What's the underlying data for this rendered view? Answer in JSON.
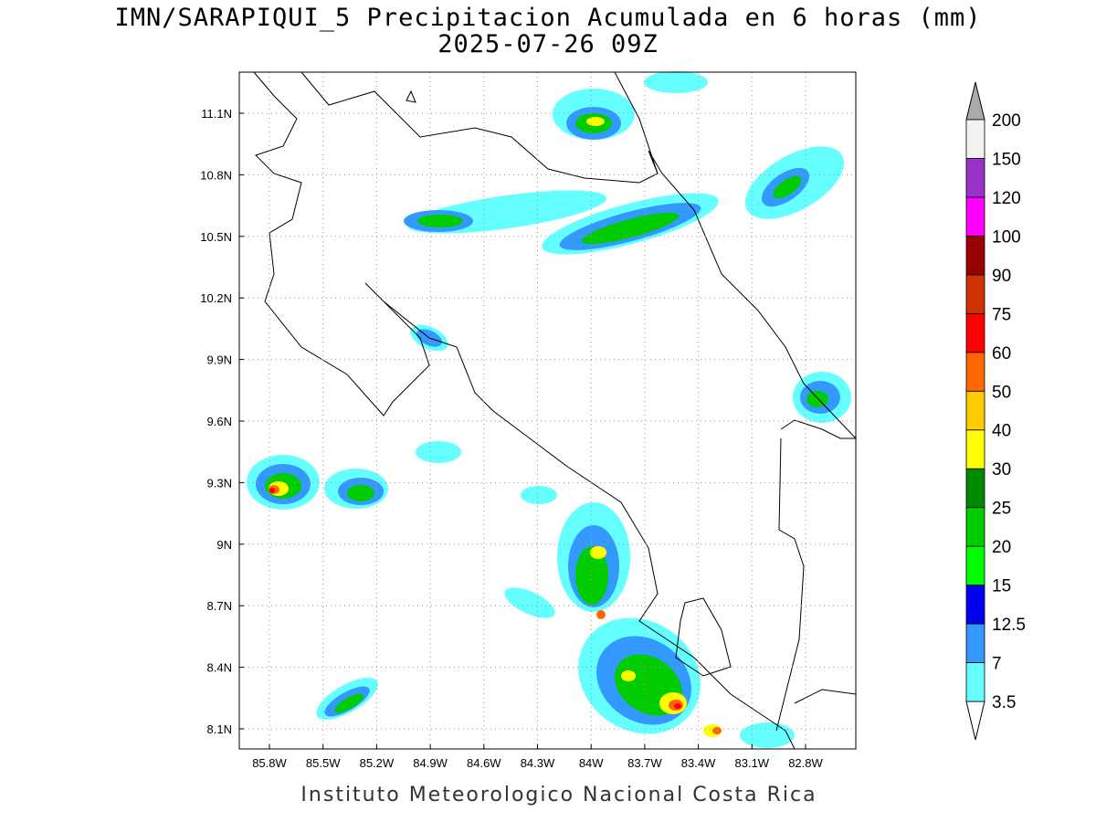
{
  "header": {
    "title": "IMN/SARAPIQUI_5 Precipitacion Acumulada en 6 horas (mm)",
    "subtitle": "2025-07-26 09Z"
  },
  "map": {
    "lat_ticks": [
      "11.1N",
      "10.8N",
      "10.5N",
      "10.2N",
      "9.9N",
      "9.6N",
      "9.3N",
      "9N",
      "8.7N",
      "8.4N",
      "8.1N"
    ],
    "lon_ticks": [
      "85.8W",
      "85.5W",
      "85.2W",
      "84.9W",
      "84.6W",
      "84.3W",
      "84W",
      "83.7W",
      "83.4W",
      "83.1W",
      "82.8W"
    ]
  },
  "legend": {
    "levels": [
      3.5,
      7,
      12.5,
      15,
      20,
      25,
      30,
      40,
      50,
      60,
      75,
      90,
      100,
      120,
      150,
      200
    ],
    "colors": [
      "#66ffff",
      "#3399ff",
      "#0000ee",
      "#00ff00",
      "#00cc00",
      "#008a00",
      "#ffff00",
      "#ffcc00",
      "#ff6600",
      "#ff0000",
      "#cc3300",
      "#990000",
      "#ff00ff",
      "#9933cc",
      "#f2f2f2"
    ]
  },
  "footer": "Instituto Meteorologico Nacional Costa Rica"
}
